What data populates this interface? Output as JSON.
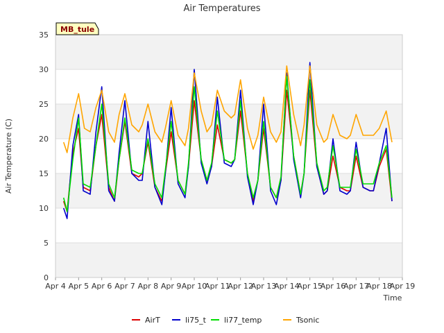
{
  "chart_data": {
    "type": "line",
    "title": "Air Temperatures",
    "xlabel": "Time",
    "ylabel": "Air Temperature (C)",
    "site_badge": "MB_tule",
    "ylim": [
      0,
      35
    ],
    "yticks": [
      0,
      5,
      10,
      15,
      20,
      25,
      30,
      35
    ],
    "xlim": [
      4,
      19
    ],
    "xticks": [
      4,
      5,
      6,
      7,
      8,
      9,
      10,
      11,
      12,
      13,
      14,
      15,
      16,
      17,
      18,
      19
    ],
    "xtick_labels": [
      "Apr 4",
      "Apr 5",
      "Apr 6",
      "Apr 7",
      "Apr 8",
      "Apr 9",
      "Apr 10",
      "Apr 11",
      "Apr 12",
      "Apr 13",
      "Apr 14",
      "Apr 15",
      "Apr 16",
      "Apr 17",
      "Apr 18",
      "Apr 19"
    ],
    "grid": "horizontal bands",
    "legend_placement": "bottom",
    "series": [
      {
        "name": "AirT",
        "color": "#dd0000",
        "x": [
          4.35,
          4.5,
          4.75,
          5.0,
          5.2,
          5.5,
          5.75,
          6.0,
          6.3,
          6.55,
          6.75,
          7.0,
          7.3,
          7.6,
          7.75,
          8.0,
          8.3,
          8.6,
          8.75,
          9.0,
          9.3,
          9.6,
          9.75,
          10.0,
          10.3,
          10.55,
          10.75,
          11.0,
          11.3,
          11.6,
          11.75,
          12.0,
          12.3,
          12.55,
          12.75,
          13.0,
          13.3,
          13.55,
          13.75,
          14.0,
          14.3,
          14.6,
          14.75,
          15.0,
          15.3,
          15.6,
          15.75,
          16.0,
          16.3,
          16.6,
          16.75,
          17.0,
          17.3,
          17.6,
          17.75,
          18.0,
          18.3,
          18.55
        ],
        "values": [
          11,
          9.5,
          18,
          21.5,
          13,
          12.5,
          19,
          23.5,
          13,
          11,
          17,
          22.5,
          15,
          14.5,
          15,
          19.5,
          13,
          11,
          15,
          21,
          14,
          12,
          16,
          25.5,
          17,
          14,
          16,
          22,
          17,
          16.5,
          17,
          24,
          15,
          11,
          14,
          21.5,
          13,
          11.5,
          14,
          27,
          17.5,
          12,
          15,
          27,
          16,
          12,
          12.5,
          17.5,
          13,
          12.5,
          12.5,
          17.5,
          13,
          12.5,
          12.5,
          16,
          18.5,
          11
        ]
      },
      {
        "name": "li75_t",
        "color": "#0000cc",
        "x": [
          4.35,
          4.5,
          4.75,
          5.0,
          5.2,
          5.5,
          5.75,
          6.0,
          6.3,
          6.55,
          6.75,
          7.0,
          7.3,
          7.6,
          7.75,
          8.0,
          8.3,
          8.6,
          8.75,
          9.0,
          9.3,
          9.6,
          9.75,
          10.0,
          10.3,
          10.55,
          10.75,
          11.0,
          11.3,
          11.6,
          11.75,
          12.0,
          12.3,
          12.55,
          12.75,
          13.0,
          13.3,
          13.55,
          13.75,
          14.0,
          14.3,
          14.6,
          14.75,
          15.0,
          15.3,
          15.6,
          15.75,
          16.0,
          16.3,
          16.6,
          16.75,
          17.0,
          17.3,
          17.6,
          17.75,
          18.0,
          18.3,
          18.55
        ],
        "values": [
          10,
          8.5,
          19,
          23.5,
          12.5,
          12,
          21,
          27.5,
          12.5,
          11,
          18,
          25.5,
          15,
          14,
          14,
          22.5,
          13,
          10.5,
          15,
          24.5,
          13.5,
          11.5,
          16,
          30,
          16.5,
          13.5,
          16,
          26,
          16.5,
          16,
          17,
          27,
          14.5,
          10.5,
          14,
          25,
          12.5,
          10.5,
          14,
          29.5,
          17,
          11.5,
          15,
          31,
          16,
          12,
          12.5,
          20,
          12.5,
          12,
          12.5,
          19.5,
          13,
          12.5,
          12.5,
          16.5,
          21.5,
          11
        ]
      },
      {
        "name": "li77_temp",
        "color": "#00dd00",
        "x": [
          4.35,
          4.5,
          4.75,
          5.0,
          5.2,
          5.5,
          5.75,
          6.0,
          6.3,
          6.55,
          6.75,
          7.0,
          7.3,
          7.6,
          7.75,
          8.0,
          8.3,
          8.6,
          8.75,
          9.0,
          9.3,
          9.6,
          9.75,
          10.0,
          10.3,
          10.55,
          10.75,
          11.0,
          11.3,
          11.6,
          11.75,
          12.0,
          12.3,
          12.55,
          12.75,
          13.0,
          13.3,
          13.55,
          13.75,
          14.0,
          14.3,
          14.6,
          14.75,
          15.0,
          15.3,
          15.6,
          15.75,
          16.0,
          16.3,
          16.6,
          16.75,
          17.0,
          17.3,
          17.6,
          17.75,
          18.0,
          18.3,
          18.55
        ],
        "values": [
          11.5,
          9.5,
          17,
          23,
          13.5,
          13,
          19,
          25,
          13.5,
          11.5,
          17,
          23,
          15.5,
          15,
          15,
          20,
          13.5,
          11.5,
          15.5,
          22.5,
          14,
          12,
          16.5,
          27.5,
          17,
          14,
          16.5,
          24,
          17,
          16.5,
          17,
          25.5,
          15,
          11.5,
          14,
          22.5,
          13,
          11.5,
          14.5,
          29,
          17.5,
          12,
          15,
          28.5,
          16.5,
          12.5,
          13,
          19,
          13,
          13,
          13,
          18.5,
          13.5,
          13.5,
          13.5,
          16.5,
          19,
          11.5
        ]
      },
      {
        "name": "Tsonic",
        "color": "#ffa500",
        "x": [
          4.35,
          4.5,
          4.75,
          5.0,
          5.25,
          5.5,
          5.75,
          6.0,
          6.3,
          6.55,
          6.75,
          7.0,
          7.3,
          7.6,
          7.75,
          8.0,
          8.3,
          8.6,
          8.75,
          9.0,
          9.3,
          9.6,
          9.75,
          10.0,
          10.3,
          10.55,
          10.75,
          11.0,
          11.3,
          11.6,
          11.75,
          12.0,
          12.3,
          12.55,
          12.75,
          13.0,
          13.3,
          13.55,
          13.75,
          14.0,
          14.3,
          14.6,
          14.75,
          15.0,
          15.3,
          15.6,
          15.75,
          16.0,
          16.3,
          16.6,
          16.75,
          17.0,
          17.3,
          17.6,
          17.75,
          18.0,
          18.3,
          18.55
        ],
        "values": [
          19.5,
          18,
          23,
          26.5,
          21.5,
          21,
          24.5,
          27,
          21,
          19.5,
          23.5,
          26.5,
          22,
          21,
          22,
          25,
          21,
          19.5,
          21.5,
          25.5,
          20.5,
          19,
          21.5,
          29.5,
          24,
          21,
          22,
          27,
          24,
          23,
          23.5,
          28.5,
          21.5,
          18.5,
          20.5,
          26,
          21,
          19.5,
          21,
          30.5,
          23.5,
          19,
          22,
          30.5,
          22,
          19.5,
          20,
          23.5,
          20.5,
          20,
          20.5,
          23.5,
          20.5,
          20.5,
          20.5,
          21.5,
          24,
          19.5
        ]
      }
    ]
  }
}
